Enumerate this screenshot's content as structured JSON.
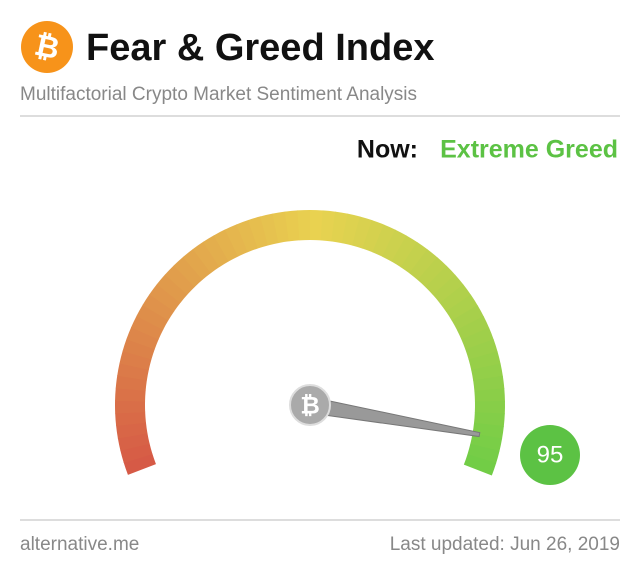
{
  "chart_data": {
    "type": "gauge",
    "title": "Fear & Greed Index",
    "subtitle": "Multifactorial Crypto Market Sentiment Analysis",
    "now_label": "Now:",
    "classification": "Extreme Greed",
    "value": 95,
    "ylim": [
      0,
      100
    ],
    "color": "#5cc244",
    "source": "alternative.me",
    "updated": "Last updated: Jun 26, 2019"
  }
}
